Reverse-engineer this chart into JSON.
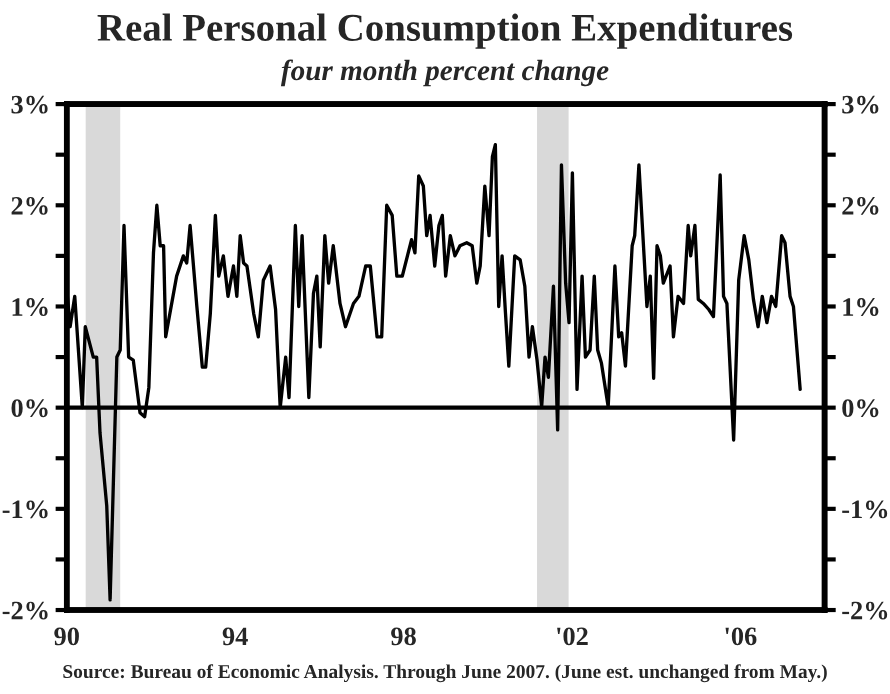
{
  "chart_data": {
    "type": "line",
    "title": "Real Personal Consumption Expenditures",
    "subtitle": "four month percent change",
    "annotations": [
      "Source: Bureau of Economic Analysis. Through June 2007. (June est. unchanged from May.)"
    ],
    "series": [
      {
        "color": "#000000",
        "x": [
          1990.0,
          1990.08,
          1990.19,
          1990.37,
          1990.44,
          1990.63,
          1990.71,
          1990.79,
          1990.95,
          1991.03,
          1991.19,
          1991.27,
          1991.36,
          1991.47,
          1991.58,
          1991.74,
          1991.85,
          1991.95,
          1992.06,
          1992.14,
          1992.22,
          1992.3,
          1992.35,
          1992.61,
          1992.77,
          1992.85,
          1992.93,
          1993.09,
          1993.22,
          1993.3,
          1993.41,
          1993.53,
          1993.61,
          1993.72,
          1993.83,
          1993.96,
          1994.04,
          1994.12,
          1994.2,
          1994.28,
          1994.44,
          1994.55,
          1994.67,
          1994.83,
          1994.96,
          1995.07,
          1995.2,
          1995.28,
          1995.43,
          1995.51,
          1995.59,
          1995.75,
          1995.86,
          1995.94,
          1996.02,
          1996.13,
          1996.22,
          1996.33,
          1996.49,
          1996.62,
          1996.81,
          1996.94,
          1997.1,
          1997.21,
          1997.37,
          1997.48,
          1997.6,
          1997.73,
          1997.84,
          1997.97,
          1998.19,
          1998.27,
          1998.36,
          1998.47,
          1998.55,
          1998.63,
          1998.74,
          1998.84,
          1998.92,
          1999.0,
          1999.11,
          1999.22,
          1999.34,
          1999.5,
          1999.63,
          1999.74,
          1999.82,
          1999.93,
          2000.03,
          2000.11,
          2000.18,
          2000.26,
          2000.34,
          2000.42,
          2000.5,
          2000.64,
          2000.77,
          2000.88,
          2000.98,
          2001.06,
          2001.17,
          2001.28,
          2001.36,
          2001.44,
          2001.56,
          2001.66,
          2001.75,
          2001.85,
          2001.93,
          2002.01,
          2002.12,
          2002.24,
          2002.32,
          2002.43,
          2002.53,
          2002.61,
          2002.7,
          2002.86,
          2003.02,
          2003.11,
          2003.18,
          2003.27,
          2003.43,
          2003.49,
          2003.59,
          2003.78,
          2003.86,
          2003.94,
          2004.02,
          2004.1,
          2004.17,
          2004.33,
          2004.41,
          2004.52,
          2004.65,
          2004.76,
          2004.82,
          2004.92,
          2005.0,
          2005.12,
          2005.25,
          2005.36,
          2005.52,
          2005.6,
          2005.68,
          2005.84,
          2005.96,
          2006.09,
          2006.2,
          2006.31,
          2006.42,
          2006.52,
          2006.63,
          2006.74,
          2006.84,
          2006.98,
          2007.06,
          2007.18,
          2007.26,
          2007.42
        ],
        "values": [
          1.17,
          0.8,
          1.1,
          0.0,
          0.8,
          0.5,
          0.5,
          -0.25,
          -0.97,
          -1.9,
          0.5,
          0.57,
          1.8,
          0.5,
          0.47,
          -0.05,
          -0.09,
          0.2,
          1.53,
          2.0,
          1.6,
          1.6,
          0.7,
          1.3,
          1.5,
          1.43,
          1.8,
          1.0,
          0.4,
          0.4,
          0.93,
          1.9,
          1.3,
          1.5,
          1.1,
          1.4,
          1.1,
          1.7,
          1.43,
          1.4,
          0.93,
          0.7,
          1.26,
          1.4,
          0.97,
          0.0,
          0.5,
          0.1,
          1.8,
          1.0,
          1.7,
          0.1,
          1.13,
          1.3,
          0.6,
          1.7,
          1.23,
          1.6,
          1.03,
          0.8,
          1.03,
          1.1,
          1.4,
          1.4,
          0.7,
          0.7,
          2.0,
          1.9,
          1.3,
          1.3,
          1.66,
          1.53,
          2.29,
          2.19,
          1.7,
          1.9,
          1.4,
          1.8,
          1.9,
          1.3,
          1.7,
          1.5,
          1.6,
          1.63,
          1.6,
          1.23,
          1.4,
          2.19,
          1.7,
          2.48,
          2.6,
          1.0,
          1.5,
          0.94,
          0.41,
          1.5,
          1.46,
          1.2,
          0.5,
          0.8,
          0.47,
          0.01,
          0.5,
          0.3,
          1.2,
          -0.22,
          2.4,
          1.23,
          0.84,
          2.32,
          0.18,
          1.3,
          0.5,
          0.57,
          1.3,
          0.57,
          0.44,
          0.01,
          1.4,
          0.7,
          0.74,
          0.41,
          1.6,
          1.7,
          2.4,
          1.0,
          1.3,
          0.29,
          1.6,
          1.5,
          1.23,
          1.4,
          0.7,
          1.1,
          1.03,
          1.8,
          1.5,
          1.8,
          1.07,
          1.03,
          0.97,
          0.9,
          2.3,
          1.1,
          1.03,
          -0.32,
          1.26,
          1.7,
          1.46,
          1.07,
          0.8,
          1.1,
          0.84,
          1.1,
          1.0,
          1.7,
          1.63,
          1.1,
          1.0,
          0.18
        ]
      }
    ],
    "xlim": [
      1990,
      2008
    ],
    "xticks": [
      {
        "value": 1990,
        "label": "90"
      },
      {
        "value": 1994,
        "label": "94"
      },
      {
        "value": 1998,
        "label": "98"
      },
      {
        "value": 2002,
        "label": "'02"
      },
      {
        "value": 2006,
        "label": "'06"
      }
    ],
    "ylim": [
      -2,
      3
    ],
    "yticks": [
      {
        "value": -2,
        "label": "-2%"
      },
      {
        "value": -1.5,
        "label": null
      },
      {
        "value": -1,
        "label": "-1%"
      },
      {
        "value": -0.5,
        "label": null
      },
      {
        "value": 0,
        "label": "0%"
      },
      {
        "value": 0.5,
        "label": null
      },
      {
        "value": 1,
        "label": "1%"
      },
      {
        "value": 1.5,
        "label": null
      },
      {
        "value": 2,
        "label": "2%"
      },
      {
        "value": 2.5,
        "label": null
      },
      {
        "value": 3,
        "label": "3%"
      }
    ],
    "y2lim": [
      -2,
      3
    ],
    "y2ticks": [
      {
        "value": -2,
        "label": "-2%"
      },
      {
        "value": -1.5,
        "label": null
      },
      {
        "value": -1,
        "label": "-1%"
      },
      {
        "value": -0.5,
        "label": null
      },
      {
        "value": 0,
        "label": "0%"
      },
      {
        "value": 0.5,
        "label": null
      },
      {
        "value": 1,
        "label": "1%"
      },
      {
        "value": 1.5,
        "label": null
      },
      {
        "value": 2,
        "label": "2%"
      },
      {
        "value": 2.5,
        "label": null
      },
      {
        "value": 3,
        "label": "3%"
      }
    ],
    "ref_lines": [
      {
        "axis": "y",
        "value": 0,
        "color": "#000000",
        "line_style": "solid"
      }
    ],
    "bands": [
      {
        "axis": "x",
        "from": 1990.45,
        "to": 1991.27,
        "color": "#d9d9d9"
      },
      {
        "axis": "x",
        "from": 2001.17,
        "to": 2001.92,
        "color": "#d9d9d9"
      }
    ],
    "grid": false,
    "legend": false,
    "marker": "none",
    "line_style": "solid"
  }
}
